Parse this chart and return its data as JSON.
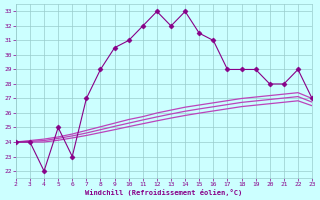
{
  "x": [
    2,
    3,
    4,
    5,
    6,
    7,
    8,
    9,
    10,
    11,
    12,
    13,
    14,
    15,
    16,
    17,
    18,
    19,
    20,
    21,
    22,
    23
  ],
  "y_main": [
    24,
    24,
    22,
    25,
    23,
    27,
    29,
    30.5,
    31,
    32,
    33,
    32,
    33,
    31.5,
    31,
    29,
    29,
    29,
    28,
    28,
    29,
    27
  ],
  "y_line1": [
    24,
    24.1,
    24.2,
    24.35,
    24.55,
    24.8,
    25.05,
    25.3,
    25.55,
    25.75,
    26.0,
    26.2,
    26.4,
    26.55,
    26.7,
    26.85,
    27.0,
    27.1,
    27.2,
    27.3,
    27.4,
    27.0
  ],
  "y_line2": [
    24,
    24.05,
    24.1,
    24.25,
    24.42,
    24.62,
    24.85,
    25.08,
    25.3,
    25.52,
    25.73,
    25.93,
    26.12,
    26.28,
    26.43,
    26.58,
    26.73,
    26.83,
    26.93,
    27.03,
    27.13,
    26.75
  ],
  "y_line3": [
    24,
    24.0,
    24.0,
    24.12,
    24.28,
    24.45,
    24.65,
    24.85,
    25.06,
    25.26,
    25.46,
    25.65,
    25.83,
    25.99,
    26.14,
    26.29,
    26.44,
    26.54,
    26.64,
    26.74,
    26.84,
    26.5
  ],
  "main_color": "#880088",
  "line_color": "#bb44bb",
  "bg_color": "#ccffff",
  "grid_color": "#99cccc",
  "xlabel": "Windchill (Refroidissement éolien,°C)",
  "ylim": [
    21.5,
    33.5
  ],
  "xlim": [
    2,
    23
  ],
  "yticks": [
    22,
    23,
    24,
    25,
    26,
    27,
    28,
    29,
    30,
    31,
    32,
    33
  ],
  "xticks": [
    2,
    3,
    4,
    5,
    6,
    7,
    8,
    9,
    10,
    11,
    12,
    13,
    14,
    15,
    16,
    17,
    18,
    19,
    20,
    21,
    22,
    23
  ]
}
